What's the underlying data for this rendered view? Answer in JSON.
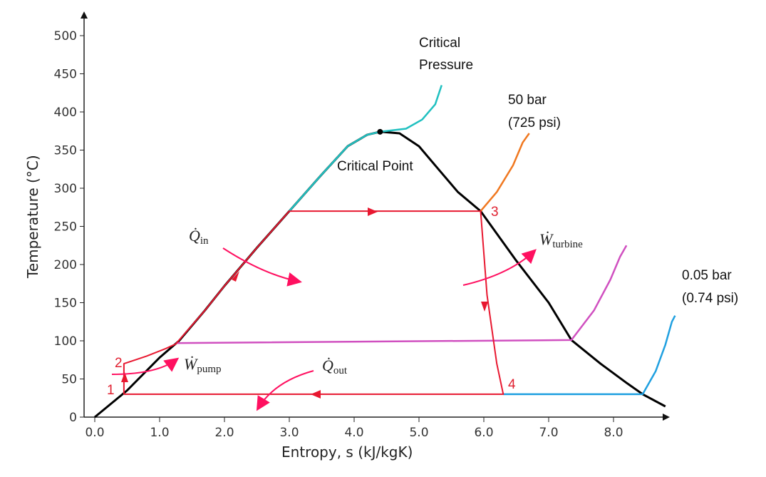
{
  "chart_data": {
    "type": "line",
    "title": "",
    "xlabel": "Entropy, s (kJ/kgK)",
    "ylabel": "Temperature (°C)",
    "xlim": [
      0,
      8.8
    ],
    "ylim": [
      0,
      500
    ],
    "xticks": [
      "0.0",
      "1.0",
      "2.0",
      "3.0",
      "4.0",
      "5.0",
      "6.0",
      "7.0",
      "8.0"
    ],
    "yticks": [
      "0",
      "50",
      "100",
      "150",
      "200",
      "250",
      "300",
      "350",
      "400",
      "450",
      "500"
    ],
    "grid": false,
    "series": [
      {
        "name": "saturation dome",
        "color": "#000000",
        "points": [
          [
            0,
            0
          ],
          [
            0.5,
            35
          ],
          [
            1.0,
            78
          ],
          [
            1.3,
            100
          ],
          [
            1.7,
            140
          ],
          [
            2.0,
            172
          ],
          [
            2.5,
            222
          ],
          [
            3.0,
            270
          ],
          [
            3.5,
            318
          ],
          [
            3.9,
            355
          ],
          [
            4.2,
            370
          ],
          [
            4.4,
            374
          ],
          [
            4.7,
            372
          ],
          [
            5.0,
            355
          ],
          [
            5.3,
            325
          ],
          [
            5.6,
            295
          ],
          [
            5.95,
            270
          ],
          [
            6.5,
            205
          ],
          [
            7.0,
            150
          ],
          [
            7.35,
            101
          ],
          [
            7.8,
            70
          ],
          [
            8.2,
            45
          ],
          [
            8.45,
            30
          ],
          [
            8.8,
            14
          ]
        ]
      },
      {
        "name": "Critical Pressure",
        "color": "#20c0c0",
        "points": [
          [
            3.0,
            270
          ],
          [
            3.5,
            318
          ],
          [
            3.9,
            355
          ],
          [
            4.2,
            370
          ],
          [
            4.4,
            374
          ],
          [
            4.8,
            378
          ],
          [
            5.05,
            390
          ],
          [
            5.25,
            410
          ],
          [
            5.35,
            435
          ]
        ]
      },
      {
        "name": "50 bar (725 psi)",
        "color": "#f07820",
        "points": [
          [
            5.95,
            270
          ],
          [
            6.2,
            295
          ],
          [
            6.45,
            330
          ],
          [
            6.6,
            360
          ],
          [
            6.7,
            372
          ]
        ]
      },
      {
        "name": "isobar 100C",
        "color": "#d050c0",
        "points": [
          [
            1.25,
            97
          ],
          [
            7.35,
            101
          ],
          [
            7.7,
            140
          ],
          [
            7.95,
            180
          ],
          [
            8.1,
            210
          ],
          [
            8.2,
            225
          ]
        ]
      },
      {
        "name": "0.05 bar (0.74 psi)",
        "color": "#20a0e0",
        "points": [
          [
            6.3,
            30
          ],
          [
            8.45,
            30
          ],
          [
            8.65,
            60
          ],
          [
            8.8,
            95
          ],
          [
            8.9,
            125
          ],
          [
            8.95,
            133
          ]
        ]
      },
      {
        "name": "Rankine cycle",
        "color": "#e81830",
        "points": [
          [
            0.45,
            30
          ],
          [
            0.45,
            70
          ],
          [
            0.8,
            80
          ],
          [
            1.1,
            90
          ],
          [
            1.25,
            96
          ],
          [
            1.7,
            140
          ],
          [
            2.0,
            172
          ],
          [
            2.5,
            222
          ],
          [
            3.0,
            270
          ],
          [
            5.95,
            270
          ],
          [
            6.05,
            160
          ],
          [
            6.2,
            70
          ],
          [
            6.3,
            30
          ],
          [
            0.45,
            30
          ]
        ]
      }
    ],
    "state_points": [
      {
        "label": "1",
        "s": 0.45,
        "T": 30
      },
      {
        "label": "2",
        "s": 0.45,
        "T": 70
      },
      {
        "label": "3",
        "s": 5.95,
        "T": 270
      },
      {
        "label": "4",
        "s": 6.3,
        "T": 30
      },
      {
        "label": "Critical Point",
        "s": 4.4,
        "T": 374
      }
    ],
    "annotations": {
      "critical_pressure_1": "Critical",
      "critical_pressure_2": "Pressure",
      "bar50_1": "50 bar",
      "bar50_2": "(725 psi)",
      "bar005_1": "0.05 bar",
      "bar005_2": "(0.74 psi)",
      "critical_point": "Critical Point",
      "q_in": "Q̇",
      "q_in_sub": "in",
      "q_out": "Q̇",
      "q_out_sub": "out",
      "w_turbine": "Ẇ",
      "w_turbine_sub": "turbine",
      "w_pump": "Ẇ",
      "w_pump_sub": "pump"
    }
  }
}
